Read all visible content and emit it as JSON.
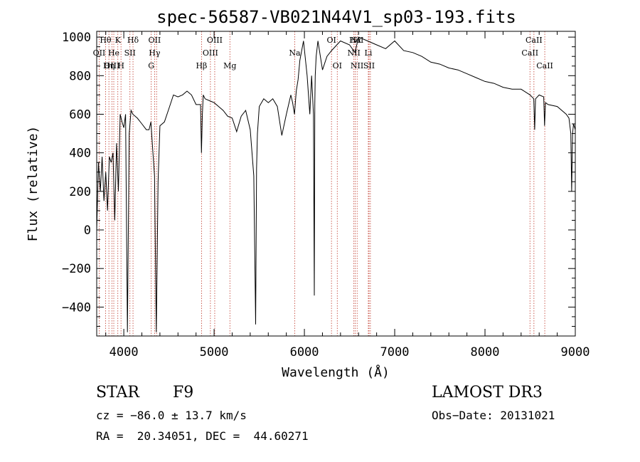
{
  "chart_data": {
    "type": "line",
    "title": "spec-56587-VB021N44V1_sp03-193.fits",
    "xlabel": "Wavelength (Å)",
    "ylabel": "Flux (relative)",
    "xlim": [
      3700,
      9000
    ],
    "ylim": [
      -550,
      1030
    ],
    "x_ticks": [
      4000,
      5000,
      6000,
      7000,
      8000,
      9000
    ],
    "x_tick_labels": [
      "4000",
      "5000",
      "6000",
      "7000",
      "8000",
      "9000"
    ],
    "y_ticks": [
      -400,
      -200,
      0,
      200,
      400,
      600,
      800,
      1000
    ],
    "y_tick_labels": [
      "−400",
      "−200",
      "0",
      "200",
      "400",
      "600",
      "800",
      "1000"
    ],
    "series": [
      {
        "name": "spectrum",
        "x": [
          3700,
          3720,
          3740,
          3760,
          3780,
          3800,
          3820,
          3840,
          3860,
          3880,
          3900,
          3920,
          3940,
          3960,
          3980,
          4000,
          4020,
          4040,
          4060,
          4080,
          4100,
          4150,
          4200,
          4250,
          4280,
          4300,
          4320,
          4340,
          4360,
          4380,
          4400,
          4450,
          4500,
          4550,
          4600,
          4650,
          4700,
          4750,
          4800,
          4850,
          4860,
          4870,
          4880,
          4900,
          4950,
          5000,
          5050,
          5100,
          5150,
          5200,
          5250,
          5300,
          5350,
          5400,
          5420,
          5440,
          5460,
          5470,
          5480,
          5500,
          5550,
          5600,
          5650,
          5700,
          5750,
          5800,
          5850,
          5870,
          5890,
          5910,
          5930,
          5950,
          5990,
          6030,
          6060,
          6080,
          6100,
          6110,
          6115,
          6120,
          6130,
          6150,
          6200,
          6250,
          6300,
          6400,
          6500,
          6560,
          6600,
          6700,
          6800,
          6900,
          7000,
          7100,
          7200,
          7300,
          7400,
          7500,
          7600,
          7700,
          7800,
          7900,
          8000,
          8100,
          8200,
          8300,
          8400,
          8500,
          8540,
          8550,
          8560,
          8600,
          8650,
          8660,
          8670,
          8700,
          8800,
          8900,
          8930,
          8950,
          8960,
          8970,
          8980,
          9000
        ],
        "values": [
          0,
          350,
          200,
          380,
          150,
          300,
          100,
          380,
          350,
          400,
          50,
          450,
          200,
          600,
          560,
          530,
          600,
          -530,
          500,
          620,
          600,
          580,
          550,
          520,
          520,
          560,
          420,
          280,
          -530,
          250,
          540,
          560,
          630,
          700,
          690,
          700,
          720,
          700,
          650,
          650,
          400,
          600,
          700,
          680,
          670,
          660,
          640,
          620,
          590,
          580,
          510,
          590,
          620,
          520,
          400,
          280,
          -490,
          320,
          500,
          640,
          680,
          660,
          680,
          640,
          490,
          600,
          700,
          660,
          600,
          720,
          780,
          880,
          980,
          800,
          600,
          800,
          600,
          -340,
          650,
          800,
          900,
          980,
          830,
          900,
          930,
          980,
          960,
          920,
          1000,
          980,
          960,
          940,
          980,
          930,
          920,
          900,
          870,
          860,
          840,
          830,
          810,
          790,
          770,
          760,
          740,
          730,
          730,
          700,
          680,
          520,
          680,
          700,
          690,
          540,
          660,
          650,
          640,
          600,
          580,
          500,
          200,
          500,
          550,
          520
        ]
      }
    ],
    "annotations": [
      {
        "label": "Hθ",
        "x": 3798,
        "row": 1
      },
      {
        "label": "K",
        "x": 3934,
        "row": 1
      },
      {
        "label": "Hδ",
        "x": 4102,
        "row": 1
      },
      {
        "label": "OII",
        "x": 4341,
        "row": 1
      },
      {
        "label": "OIII",
        "x": 5007,
        "row": 1
      },
      {
        "label": "OI",
        "x": 6300,
        "row": 1
      },
      {
        "label": "Hα",
        "x": 6563,
        "row": 1
      },
      {
        "label": "NII",
        "x": 6584,
        "row": 1
      },
      {
        "label": "CaII",
        "x": 8542,
        "row": 1
      },
      {
        "label": "OII",
        "x": 3727,
        "row": 2
      },
      {
        "label": "He",
        "x": 3889,
        "row": 2
      },
      {
        "label": "SII",
        "x": 4068,
        "row": 2
      },
      {
        "label": "Hγ",
        "x": 4341,
        "row": 2
      },
      {
        "label": "OIII",
        "x": 4959,
        "row": 2
      },
      {
        "label": "Na",
        "x": 5893,
        "row": 2
      },
      {
        "label": "NII",
        "x": 6548,
        "row": 2
      },
      {
        "label": "Li",
        "x": 6708,
        "row": 2
      },
      {
        "label": "CaII",
        "x": 8498,
        "row": 2
      },
      {
        "label": "OIII",
        "x": 3868,
        "row": 3
      },
      {
        "label": "Hη",
        "x": 3835,
        "row": 3
      },
      {
        "label": "H",
        "x": 3969,
        "row": 3
      },
      {
        "label": "G",
        "x": 4304,
        "row": 3
      },
      {
        "label": "Hβ",
        "x": 4861,
        "row": 3
      },
      {
        "label": "Mg",
        "x": 5175,
        "row": 3
      },
      {
        "label": "OI",
        "x": 6364,
        "row": 3
      },
      {
        "label": "NII",
        "x": 6583,
        "row": 3
      },
      {
        "label": "SII",
        "x": 6716,
        "row": 3
      },
      {
        "label": "CaII",
        "x": 8662,
        "row": 3
      }
    ],
    "line_markers": [
      3727,
      3798,
      3835,
      3868,
      3889,
      3934,
      3969,
      4068,
      4102,
      4304,
      4341,
      4363,
      4861,
      4959,
      5007,
      5175,
      5893,
      6300,
      6364,
      6548,
      6563,
      6584,
      6708,
      6716,
      6731,
      8498,
      8542,
      8662
    ],
    "grid": false,
    "legend": "none"
  },
  "info": {
    "object_class": "STAR",
    "subclass": "F9",
    "survey": "LAMOST DR3",
    "cz": "cz = −86.0 ± 13.7 km/s",
    "obs_date": "Obs−Date: 20131021",
    "coords": "RA =  20.34051, DEC =  44.60271"
  }
}
